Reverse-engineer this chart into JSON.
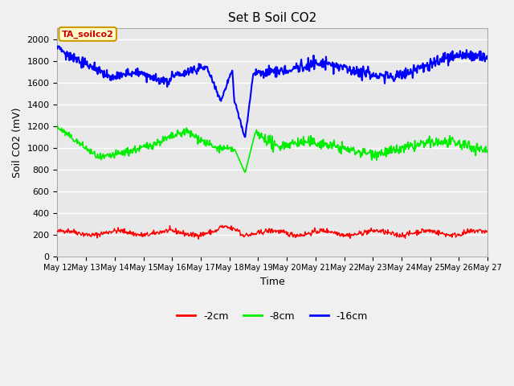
{
  "title": "Set B Soil CO2",
  "xlabel": "Time",
  "ylabel": "Soil CO2 (mV)",
  "annotation_text": "TA_soilco2",
  "annotation_bg": "#ffffcc",
  "annotation_border": "#cc9900",
  "annotation_text_color": "#cc0000",
  "ylim": [
    0,
    2100
  ],
  "yticks": [
    0,
    200,
    400,
    600,
    800,
    1000,
    1200,
    1400,
    1600,
    1800,
    2000
  ],
  "bg_color": "#e8e8e8",
  "fig_bg_color": "#f0f0f0",
  "grid_color": "#ffffff",
  "line_colors": {
    "red": "#ff0000",
    "green": "#00ee00",
    "blue": "#0000ff"
  },
  "legend_labels": [
    "-2cm",
    "-8cm",
    "-16cm"
  ],
  "xtick_labels": [
    "May 12",
    "May 13",
    "May 14",
    "May 15",
    "May 16",
    "May 17",
    "May 18",
    "May 19",
    "May 20",
    "May 21",
    "May 22",
    "May 23",
    "May 24",
    "May 25",
    "May 26",
    "May 27"
  ]
}
